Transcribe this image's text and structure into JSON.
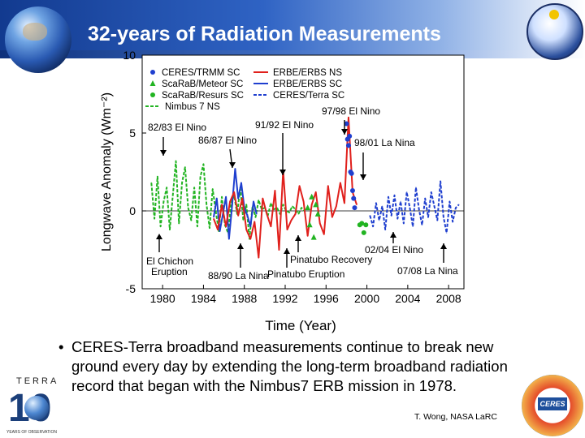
{
  "slide": {
    "title": "32-years of Radiation Measurements",
    "bullet": "CERES-Terra broadband measurements continue to break new ground every day by extending the long-term broadband radiation record that began with the Nimbus7 ERB mission in 1978.",
    "credit": "T. Wong, NASA LaRC",
    "logo_left_word": "TERRA",
    "logo_left_number": "10",
    "logo_left_sub": "YEARS OF OBSERVATION",
    "logo_right_word": "CERES"
  },
  "chart_data": {
    "type": "line",
    "xlabel": "Time (Year)",
    "ylabel": "Longwave Anomaly (Wm⁻²)",
    "xlim": [
      1978,
      2009.5
    ],
    "ylim": [
      -5,
      10
    ],
    "xticks": [
      1980,
      1984,
      1988,
      1992,
      1996,
      2000,
      2004,
      2008
    ],
    "yticks": [
      -5,
      0,
      5,
      10
    ],
    "legend": [
      {
        "name": "CERES/TRMM SC",
        "color": "#1f3fcf",
        "style": "dots"
      },
      {
        "name": "ScaRaB/Meteor SC",
        "color": "#22b422",
        "style": "triangles"
      },
      {
        "name": "ScaRaB/Resurs SC",
        "color": "#22b422",
        "style": "dots"
      },
      {
        "name": "Nimbus 7 NS",
        "color": "#22b422",
        "style": "dashed"
      },
      {
        "name": "ERBE/ERBS NS",
        "color": "#e0201c",
        "style": "solid"
      },
      {
        "name": "ERBE/ERBS SC",
        "color": "#1f3fcf",
        "style": "solid"
      },
      {
        "name": "CERES/Terra SC",
        "color": "#1f3fcf",
        "style": "dashed"
      }
    ],
    "annotations": [
      "82/83 El Nino",
      "86/87 El Nino",
      "91/92 El Nino",
      "97/98 El Nino",
      "98/01 La Nina",
      "El Chichon Eruption",
      "88/90 La Nina",
      "Pinatubo Recovery",
      "Pinatubo Eruption",
      "02/04 El Nino",
      "07/08 La Nina"
    ],
    "series": [
      {
        "name": "Nimbus 7 NS",
        "color": "#22b422",
        "style": "dashed",
        "x": [
          1978.9,
          1979.2,
          1979.5,
          1979.8,
          1980.1,
          1980.4,
          1980.7,
          1981.0,
          1981.3,
          1981.6,
          1981.9,
          1982.2,
          1982.5,
          1982.8,
          1983.1,
          1983.4,
          1983.7,
          1984.0,
          1984.3,
          1984.6,
          1984.9,
          1985.2,
          1985.5,
          1985.8,
          1986.1,
          1986.4,
          1986.7,
          1987.0,
          1987.3,
          1987.6,
          1987.9,
          1988.2,
          1988.5,
          1988.8,
          1989.1,
          1989.4,
          1989.7,
          1990.0,
          1990.3,
          1990.6,
          1990.9,
          1991.2,
          1991.5,
          1991.8,
          1992.1,
          1992.4,
          1992.7,
          1993.0,
          1993.3,
          1993.6,
          1993.9
        ],
        "y": [
          1.8,
          -0.5,
          2.2,
          -1.0,
          0.6,
          1.5,
          -1.2,
          1.0,
          3.2,
          -0.8,
          1.8,
          2.8,
          0.2,
          -0.6,
          1.5,
          -1.0,
          2.2,
          3.0,
          0.4,
          -1.1,
          1.4,
          0.0,
          -1.3,
          0.9,
          -0.9,
          -1.4,
          0.5,
          1.0,
          -0.2,
          1.5,
          -0.6,
          0.4,
          -1.8,
          0.3,
          -0.4,
          0.7,
          0.1,
          0.2,
          -0.3,
          0.5,
          0.1,
          0.2,
          -0.2,
          0.4,
          0.0,
          -0.1,
          0.3,
          0.1,
          -0.2,
          0.2,
          0.0
        ]
      },
      {
        "name": "ERBE/ERBS SC",
        "color": "#1f3fcf",
        "style": "solid",
        "x": [
          1985.0,
          1985.3,
          1985.6,
          1985.9,
          1986.2,
          1986.5,
          1986.8,
          1987.1,
          1987.4,
          1987.7,
          1988.0,
          1988.3,
          1988.6,
          1988.9,
          1989.2
        ],
        "y": [
          -0.4,
          0.8,
          -1.3,
          -0.2,
          0.9,
          -1.8,
          0.3,
          2.7,
          0.8,
          1.8,
          0.2,
          -0.3,
          -1.0,
          0.6,
          -0.2
        ]
      },
      {
        "name": "ERBE/ERBS NS",
        "color": "#e0201c",
        "style": "solid",
        "x": [
          1985.0,
          1985.4,
          1985.8,
          1986.2,
          1986.6,
          1987.0,
          1987.4,
          1987.8,
          1988.2,
          1988.6,
          1989.0,
          1989.4,
          1989.8,
          1990.2,
          1990.6,
          1991.0,
          1991.4,
          1991.8,
          1992.2,
          1992.6,
          1993.0,
          1993.4,
          1993.8,
          1994.2,
          1994.6,
          1995.0,
          1995.4,
          1995.8,
          1996.2,
          1996.6,
          1997.0,
          1997.4,
          1997.8,
          1998.2,
          1998.6,
          1999.0
        ],
        "y": [
          -0.5,
          -1.2,
          0.4,
          -1.0,
          0.6,
          1.2,
          -0.3,
          0.8,
          -1.2,
          -1.8,
          -0.7,
          -3.0,
          0.8,
          -0.2,
          -1.0,
          1.3,
          -2.5,
          2.6,
          -1.2,
          -0.6,
          -0.2,
          1.6,
          0.6,
          -1.6,
          0.4,
          1.2,
          -0.8,
          -1.5,
          1.6,
          -0.4,
          0.3,
          1.8,
          0.5,
          6.0,
          1.2,
          0.4
        ]
      },
      {
        "name": "ScaRaB/Meteor SC",
        "color": "#22b422",
        "style": "triangles",
        "x": [
          1994.2,
          1994.4,
          1994.6,
          1994.8,
          1995.0,
          1995.2
        ],
        "y": [
          0.2,
          -0.9,
          0.9,
          -1.7,
          0.4,
          -0.2
        ]
      },
      {
        "name": "CERES/TRMM SC",
        "color": "#1f3fcf",
        "style": "dots",
        "x": [
          1998.0,
          1998.1,
          1998.2,
          1998.3,
          1998.4,
          1998.5,
          1998.6,
          1998.7,
          1998.8
        ],
        "y": [
          5.6,
          4.6,
          4.2,
          4.8,
          2.5,
          2.4,
          1.3,
          0.8,
          0.2
        ]
      },
      {
        "name": "ScaRaB/Resurs SC",
        "color": "#22b422",
        "style": "dots",
        "x": [
          1999.3,
          1999.5,
          1999.7,
          1999.9
        ],
        "y": [
          -0.9,
          -0.8,
          -1.4,
          -0.9
        ]
      },
      {
        "name": "CERES/Terra SC",
        "color": "#1f3fcf",
        "style": "dashed",
        "x": [
          2000.3,
          2000.6,
          2000.9,
          2001.2,
          2001.5,
          2001.8,
          2002.1,
          2002.4,
          2002.7,
          2003.0,
          2003.3,
          2003.6,
          2003.9,
          2004.2,
          2004.5,
          2004.8,
          2005.1,
          2005.4,
          2005.7,
          2006.0,
          2006.3,
          2006.6,
          2006.9,
          2007.2,
          2007.5,
          2007.8,
          2008.1,
          2008.4,
          2008.7,
          2009.0
        ],
        "y": [
          -0.3,
          -1.0,
          0.5,
          -0.6,
          0.3,
          -1.2,
          0.9,
          -0.3,
          1.0,
          -0.5,
          0.6,
          -0.8,
          1.2,
          0.2,
          -1.0,
          1.5,
          0.1,
          -0.9,
          0.8,
          -0.4,
          1.2,
          0.3,
          -0.6,
          1.9,
          -0.4,
          -1.4,
          0.6,
          -0.7,
          0.2,
          0.4
        ]
      }
    ]
  }
}
